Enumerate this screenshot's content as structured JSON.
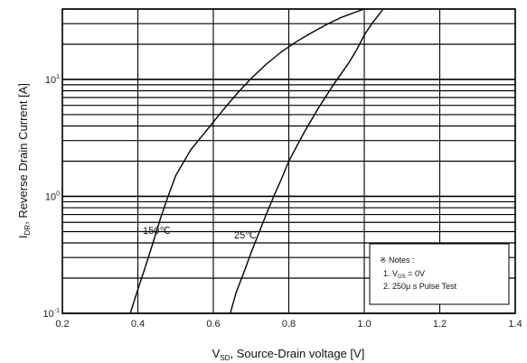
{
  "chart_data": {
    "type": "line",
    "xscale": "linear",
    "yscale": "log",
    "xlim": [
      0.2,
      1.4
    ],
    "ylim": [
      0.1,
      40
    ],
    "grid": true,
    "x_ticks": [
      "0.2",
      "0.4",
      "0.6",
      "0.8",
      "1.0",
      "1.2",
      "1.4"
    ],
    "y_ticks": [
      {
        "mantissa": "10",
        "exp": "-1",
        "value": 0.1
      },
      {
        "mantissa": "10",
        "exp": "0",
        "value": 1
      },
      {
        "mantissa": "10",
        "exp": "1",
        "value": 10
      }
    ],
    "xlabel": {
      "main": "V",
      "sub": "SD",
      "rest": ", Source-Drain voltage [V]"
    },
    "ylabel": {
      "main": "I",
      "sub": "DR",
      "rest": ", Reverse Drain Current [A]"
    },
    "series": [
      {
        "name": "150℃",
        "points": [
          [
            0.38,
            0.1
          ],
          [
            0.4,
            0.16
          ],
          [
            0.42,
            0.25
          ],
          [
            0.44,
            0.4
          ],
          [
            0.46,
            0.65
          ],
          [
            0.48,
            1.0
          ],
          [
            0.5,
            1.5
          ],
          [
            0.54,
            2.5
          ],
          [
            0.58,
            3.6
          ],
          [
            0.62,
            5.2
          ],
          [
            0.66,
            7.4
          ],
          [
            0.7,
            10.2
          ],
          [
            0.74,
            13.5
          ],
          [
            0.78,
            17.2
          ],
          [
            0.82,
            21.0
          ],
          [
            0.86,
            25.0
          ],
          [
            0.9,
            29.5
          ],
          [
            0.94,
            34.0
          ],
          [
            0.98,
            38.0
          ],
          [
            1.0,
            40.0
          ]
        ]
      },
      {
        "name": "25℃",
        "points": [
          [
            0.645,
            0.1
          ],
          [
            0.66,
            0.15
          ],
          [
            0.68,
            0.22
          ],
          [
            0.7,
            0.33
          ],
          [
            0.72,
            0.48
          ],
          [
            0.74,
            0.7
          ],
          [
            0.76,
            1.0
          ],
          [
            0.78,
            1.4
          ],
          [
            0.8,
            2.0
          ],
          [
            0.84,
            3.5
          ],
          [
            0.88,
            5.8
          ],
          [
            0.92,
            9.2
          ],
          [
            0.96,
            14.0
          ],
          [
            0.98,
            18.0
          ],
          [
            1.0,
            24.0
          ],
          [
            1.02,
            30.0
          ],
          [
            1.05,
            40.0
          ]
        ]
      }
    ],
    "notes": {
      "title": "※ Notes :",
      "line1": {
        "prefix": "1. V",
        "sub": "GS",
        "suffix": " = 0V"
      },
      "line2": "2. 250μ s Pulse Test"
    }
  }
}
